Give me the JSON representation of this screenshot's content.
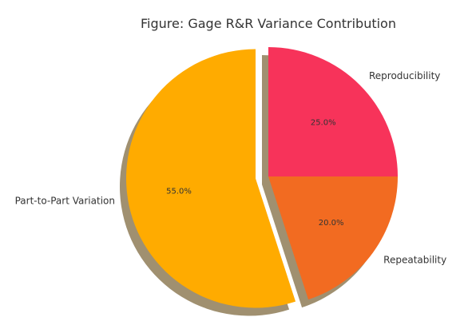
{
  "chart_data": {
    "type": "pie",
    "title": "Figure: Gage R&R Variance Contribution",
    "slices": [
      {
        "label": "Reproducibility",
        "value": 25.0,
        "pct_label": "25.0%",
        "color": "#f7335a",
        "exploded": false
      },
      {
        "label": "Repeatability",
        "value": 20.0,
        "pct_label": "20.0%",
        "color": "#f26b21",
        "exploded": false
      },
      {
        "label": "Part-to-Part Variation",
        "value": 55.0,
        "pct_label": "55.0%",
        "color": "#ffab00",
        "exploded": true
      }
    ],
    "start_angle": "top",
    "direction": "clockwise",
    "shadow": true,
    "shadow_color": "#a09070"
  }
}
